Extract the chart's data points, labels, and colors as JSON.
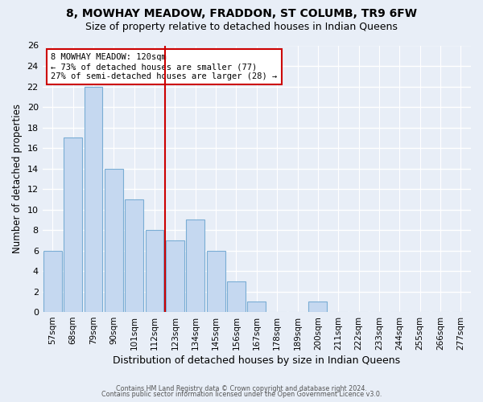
{
  "title": "8, MOWHAY MEADOW, FRADDON, ST COLUMB, TR9 6FW",
  "subtitle": "Size of property relative to detached houses in Indian Queens",
  "xlabel": "Distribution of detached houses by size in Indian Queens",
  "ylabel": "Number of detached properties",
  "bar_labels": [
    "57sqm",
    "68sqm",
    "79sqm",
    "90sqm",
    "101sqm",
    "112sqm",
    "123sqm",
    "134sqm",
    "145sqm",
    "156sqm",
    "167sqm",
    "178sqm",
    "189sqm",
    "200sqm",
    "211sqm",
    "222sqm",
    "233sqm",
    "244sqm",
    "255sqm",
    "266sqm",
    "277sqm"
  ],
  "bar_values": [
    6,
    17,
    22,
    14,
    11,
    8,
    7,
    9,
    6,
    3,
    1,
    0,
    0,
    1,
    0,
    0,
    0,
    0,
    0,
    0,
    0
  ],
  "bar_color": "#c5d8f0",
  "bar_edge_color": "#7aadd4",
  "vline_x": 5.5,
  "vline_color": "#cc0000",
  "annotation_title": "8 MOWHAY MEADOW: 120sqm",
  "annotation_line1": "← 73% of detached houses are smaller (77)",
  "annotation_line2": "27% of semi-detached houses are larger (28) →",
  "annotation_box_color": "#ffffff",
  "annotation_box_edge": "#cc0000",
  "ylim": [
    0,
    26
  ],
  "yticks": [
    0,
    2,
    4,
    6,
    8,
    10,
    12,
    14,
    16,
    18,
    20,
    22,
    24,
    26
  ],
  "footer1": "Contains HM Land Registry data © Crown copyright and database right 2024.",
  "footer2": "Contains public sector information licensed under the Open Government Licence v3.0.",
  "bg_color": "#e8eef7",
  "plot_bg_color": "#e8eef7",
  "title_fontsize": 10,
  "subtitle_fontsize": 9
}
